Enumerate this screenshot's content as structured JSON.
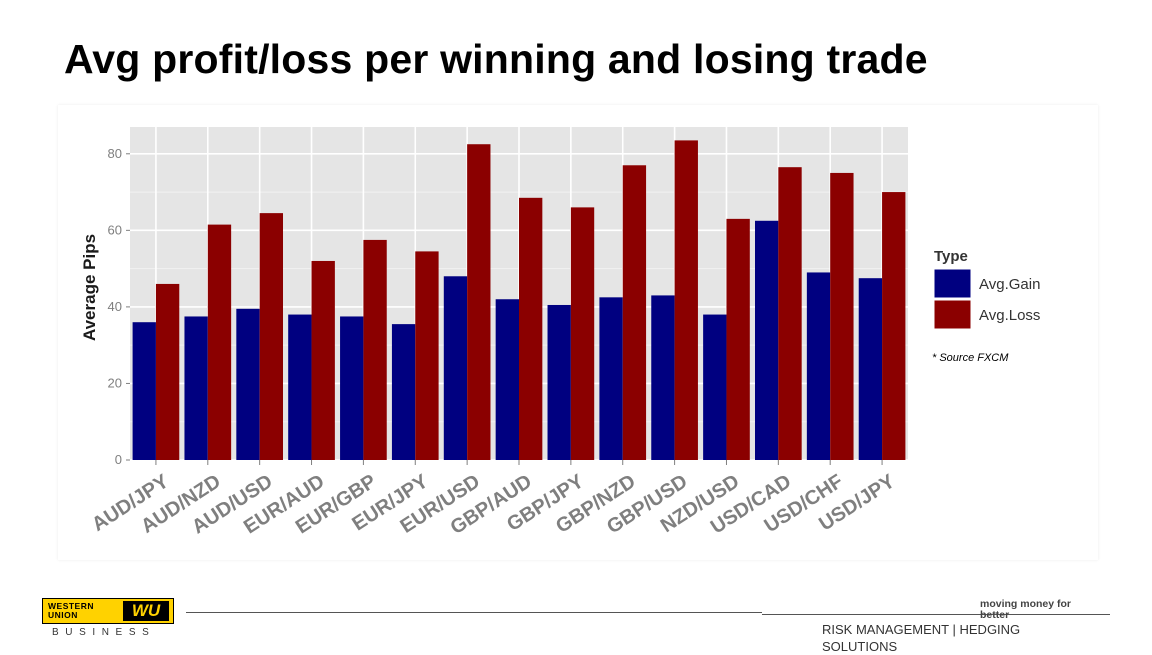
{
  "slide": {
    "title": "Avg profit/loss per winning and losing trade",
    "source_note": "* Source FXCM"
  },
  "chart_data": {
    "type": "bar",
    "title": "",
    "xlabel": "",
    "ylabel": "Average Pips",
    "ylim": [
      0,
      87
    ],
    "yticks": [
      0,
      20,
      40,
      60,
      80
    ],
    "grid": true,
    "legend_title": "Type",
    "legend_position": "right",
    "categories": [
      "AUD/JPY",
      "AUD/NZD",
      "AUD/USD",
      "EUR/AUD",
      "EUR/GBP",
      "EUR/JPY",
      "EUR/USD",
      "GBP/AUD",
      "GBP/JPY",
      "GBP/NZD",
      "GBP/USD",
      "NZD/USD",
      "USD/CAD",
      "USD/CHF",
      "USD/JPY"
    ],
    "series": [
      {
        "name": "Avg.Gain",
        "color": "#000080",
        "values": [
          36,
          37.5,
          39.5,
          38,
          37.5,
          35.5,
          48,
          42,
          40.5,
          42.5,
          43,
          38,
          62.5,
          49,
          47.5
        ]
      },
      {
        "name": "Avg.Loss",
        "color": "#8b0000",
        "values": [
          46,
          61.5,
          64.5,
          52,
          57.5,
          54.5,
          82.5,
          68.5,
          66,
          77,
          83.5,
          63,
          76.5,
          75,
          70
        ]
      }
    ],
    "panel_color": "#e5e5e5",
    "grid_color": "#ffffff"
  },
  "footer": {
    "logo_line1": "WESTERN",
    "logo_line2": "UNION",
    "logo_mark": "WU",
    "business_label": "BUSINESS",
    "tagline": "moving money for better",
    "section_label": "RISK MANAGEMENT | HEDGING SOLUTIONS"
  }
}
